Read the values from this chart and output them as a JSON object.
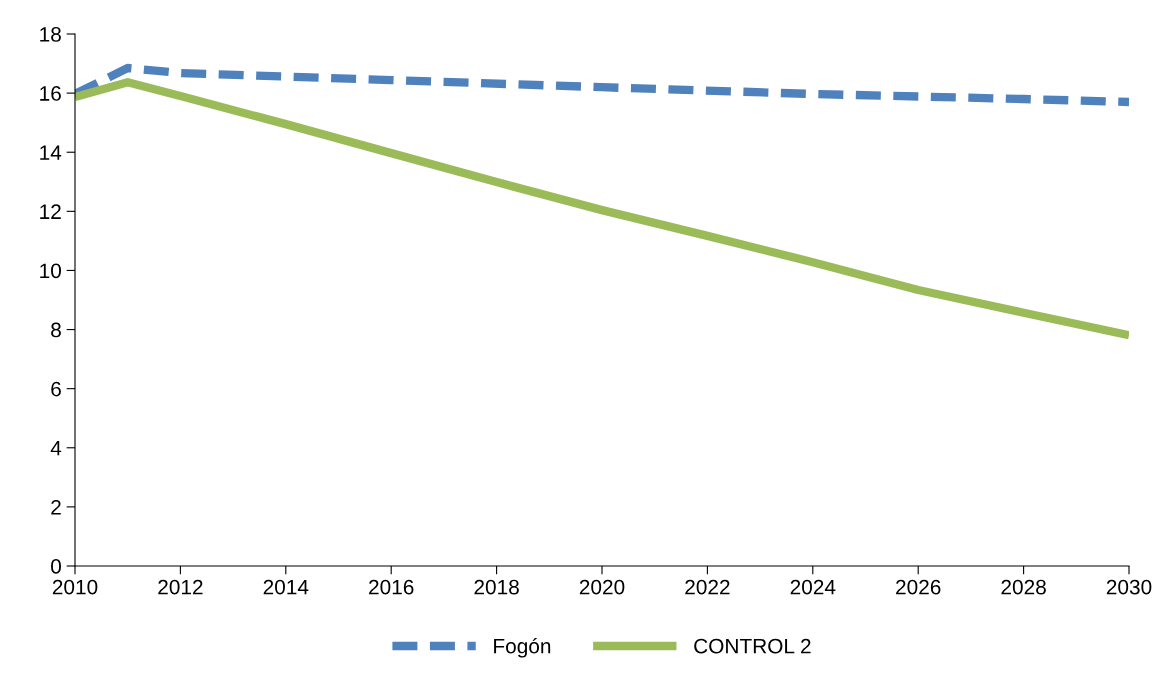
{
  "chart_data": {
    "type": "line",
    "xlim": [
      2010,
      2030
    ],
    "xticks": [
      2010,
      2012,
      2014,
      2016,
      2018,
      2020,
      2022,
      2024,
      2026,
      2028,
      2030
    ],
    "ylim": [
      0,
      18
    ],
    "yticks": [
      0,
      2,
      4,
      6,
      8,
      10,
      12,
      14,
      16,
      18
    ],
    "grid": false,
    "legend": "bottom",
    "series": [
      {
        "name": "Fogón",
        "color": "#4f81bd",
        "line_style": "dashed",
        "x": [
          2010,
          2011,
          2012,
          2016,
          2020,
          2024,
          2028,
          2030
        ],
        "values": [
          15.97,
          16.85,
          16.68,
          16.44,
          16.2,
          15.97,
          15.8,
          15.7
        ]
      },
      {
        "name": "CONTROL 2",
        "color": "#9bbb59",
        "line_style": "solid",
        "x": [
          2010,
          2011,
          2012,
          2014,
          2016,
          2018,
          2020,
          2022,
          2024,
          2026,
          2028,
          2030
        ],
        "values": [
          15.87,
          16.37,
          15.9,
          14.95,
          13.97,
          12.99,
          12.04,
          11.17,
          10.28,
          9.34,
          8.57,
          7.81
        ]
      }
    ]
  }
}
